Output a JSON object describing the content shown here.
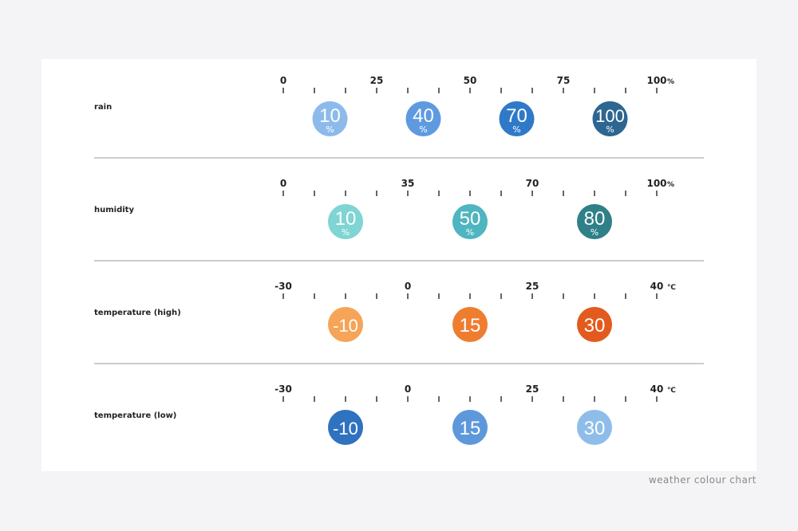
{
  "rows": [
    {
      "label": "rain",
      "ticks": [
        "0",
        "25",
        "50",
        "75",
        "100"
      ],
      "unit": "%",
      "badges": [
        {
          "value": "10",
          "unit": "%",
          "color": "#8cbbeb"
        },
        {
          "value": "40",
          "unit": "%",
          "color": "#5e9ae0"
        },
        {
          "value": "70",
          "unit": "%",
          "color": "#2f7ac8"
        },
        {
          "value": "100",
          "unit": "%",
          "color": "#2d6690"
        }
      ]
    },
    {
      "label": "humidity",
      "ticks": [
        "0",
        "35",
        "70",
        "100"
      ],
      "unit": "%",
      "badges": [
        {
          "value": "10",
          "unit": "%",
          "color": "#7fd4d4"
        },
        {
          "value": "50",
          "unit": "%",
          "color": "#4fb5c0"
        },
        {
          "value": "80",
          "unit": "%",
          "color": "#2f8088"
        }
      ]
    },
    {
      "label": "temperature (high)",
      "ticks": [
        "-30",
        "0",
        "25",
        "40"
      ],
      "unit": "℃",
      "badges": [
        {
          "value": "-10",
          "color": "#f5a458"
        },
        {
          "value": "15",
          "color": "#ef7d30"
        },
        {
          "value": "30",
          "color": "#e35a1e"
        }
      ]
    },
    {
      "label": "temperature (low)",
      "ticks": [
        "-30",
        "0",
        "25",
        "40"
      ],
      "unit": "℃",
      "badges": [
        {
          "value": "-10",
          "color": "#2f72bf"
        },
        {
          "value": "15",
          "color": "#5e98db"
        },
        {
          "value": "30",
          "color": "#8fbde9"
        }
      ]
    }
  ],
  "caption": "weather colour chart"
}
